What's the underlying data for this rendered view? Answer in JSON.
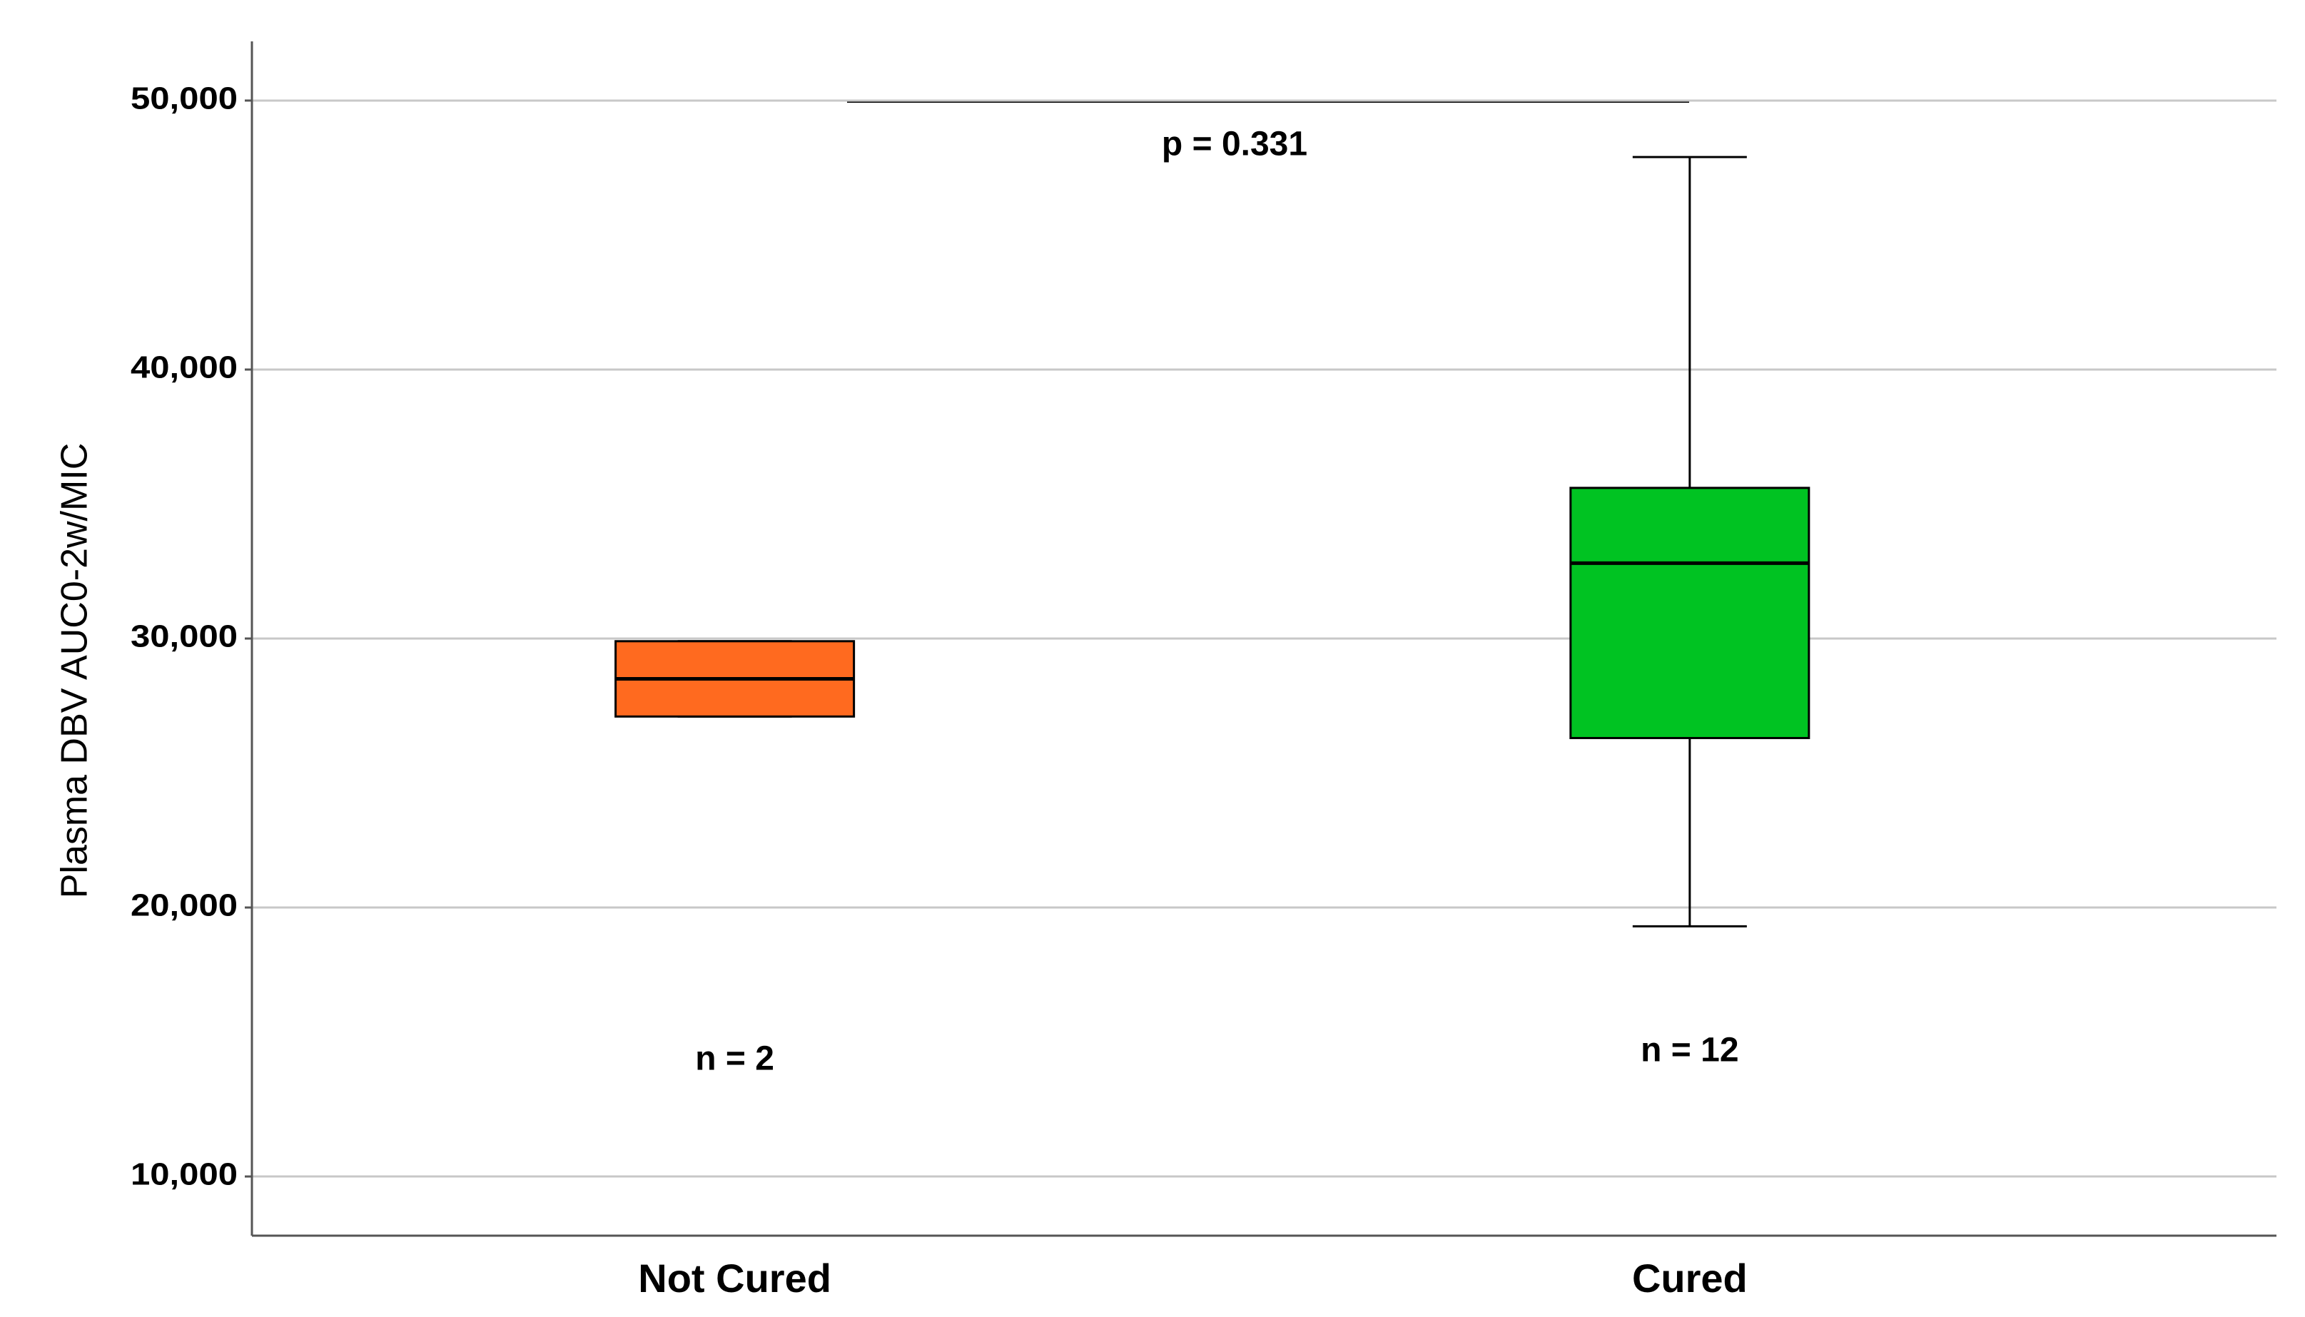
{
  "chart_data": {
    "type": "box",
    "y_label": "Plasma DBV AUC0-2w/MIC",
    "categories": [
      "Not Cured",
      "Cured"
    ],
    "colors": [
      "#ff6a1f",
      "#00c322"
    ],
    "boxes": [
      {
        "min": 27100,
        "q1": 27100,
        "median": 28500,
        "q3": 29900,
        "max": 29900
      },
      {
        "min": 19300,
        "q1": 26300,
        "median": 32800,
        "q3": 35600,
        "max": 47900
      }
    ],
    "n_labels": [
      "n = 2",
      "n = 12"
    ],
    "annotation": "p = 0.331",
    "ylim": [
      7800,
      52200
    ],
    "yticks": [
      {
        "value": 10000,
        "label": "10,000"
      },
      {
        "value": 20000,
        "label": "20,000"
      },
      {
        "value": 30000,
        "label": "30,000"
      },
      {
        "value": 40000,
        "label": "40,000"
      },
      {
        "value": 50000,
        "label": "50,000"
      }
    ],
    "grid": true
  }
}
